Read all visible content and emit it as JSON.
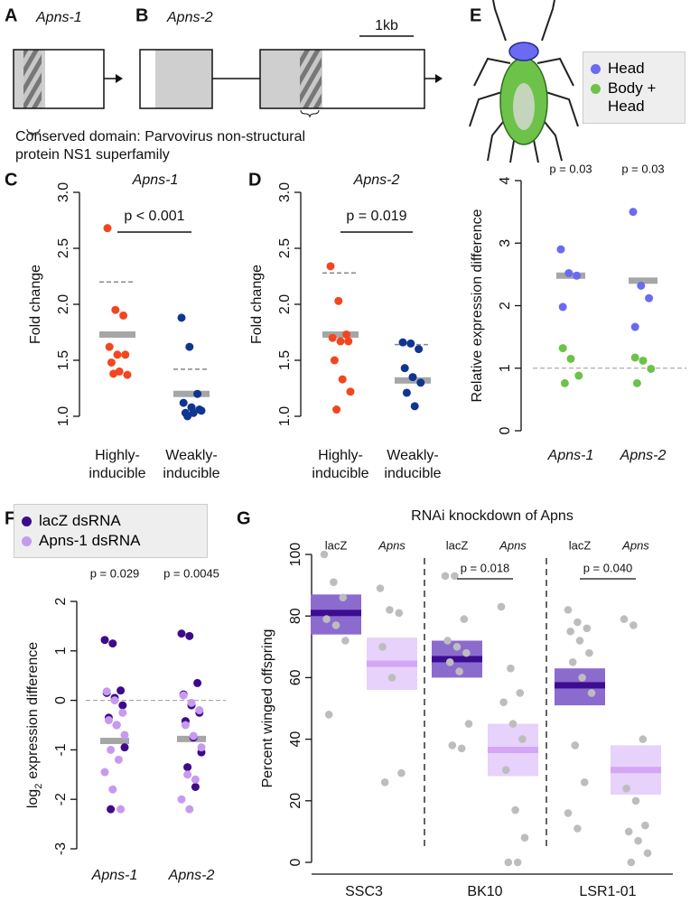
{
  "gene_diagram": {
    "panels": [
      {
        "letter": "A",
        "gene": "Apns-1"
      },
      {
        "letter": "B",
        "gene": "Apns-2"
      }
    ],
    "scale_label": "1kb",
    "domain_note": [
      "Conserved domain: Parvovirus non-structural",
      "protein NS1 superfamily"
    ]
  },
  "chart_data": [
    {
      "type": "strip",
      "panel": "C",
      "title": "Apns-1",
      "ylabel": "Fold change",
      "ylim": [
        1.0,
        3.0
      ],
      "yticks": [
        {
          "value": 1.0,
          "label": "1.0"
        },
        {
          "value": 1.5,
          "label": "1.5"
        },
        {
          "value": 2.0,
          "label": "2.0"
        },
        {
          "value": 2.5,
          "label": "2.5"
        },
        {
          "value": 3.0,
          "label": "3.0"
        }
      ],
      "p_label": "p < 0.001",
      "mean_color": "#a6a6a6",
      "groups": [
        {
          "category": [
            "Highly-",
            "inducible"
          ],
          "color": "#f2461f",
          "values": [
            2.68,
            1.95,
            1.9,
            1.62,
            1.55,
            1.55,
            1.48,
            1.4,
            1.37,
            1.38
          ],
          "mean": 1.73,
          "threshold": 2.2
        },
        {
          "category": [
            "Weakly-",
            "inducible"
          ],
          "color": "#0f3592",
          "values": [
            1.88,
            1.62,
            1.2,
            1.12,
            1.08,
            1.06,
            1.03,
            1.03,
            1.05,
            1.0
          ],
          "mean": 1.2,
          "threshold": 1.42
        }
      ]
    },
    {
      "type": "strip",
      "panel": "D",
      "title": "Apns-2",
      "ylabel": "Fold change",
      "ylim": [
        1.0,
        3.0
      ],
      "yticks": [
        {
          "value": 1.0,
          "label": "1.0"
        },
        {
          "value": 1.5,
          "label": "1.5"
        },
        {
          "value": 2.0,
          "label": "2.0"
        },
        {
          "value": 2.5,
          "label": "2.5"
        },
        {
          "value": 3.0,
          "label": "3.0"
        }
      ],
      "p_label": "p = 0.019",
      "mean_color": "#a6a6a6",
      "groups": [
        {
          "category": [
            "Highly-",
            "inducible"
          ],
          "color": "#f2461f",
          "values": [
            2.34,
            2.03,
            1.73,
            1.7,
            1.67,
            1.67,
            1.5,
            1.33,
            1.22,
            1.06
          ],
          "mean": 1.73,
          "threshold": 2.28
        },
        {
          "category": [
            "Weakly-",
            "inducible"
          ],
          "color": "#0f3592",
          "values": [
            1.66,
            1.65,
            1.6,
            1.43,
            1.35,
            1.3,
            1.21,
            1.09
          ],
          "mean": 1.32,
          "threshold": 1.64
        }
      ]
    },
    {
      "type": "multi_strip",
      "panel": "E",
      "ylabel": "Relative expression difference",
      "ylim": [
        0,
        4
      ],
      "yticks": [
        0,
        1,
        2,
        3,
        4
      ],
      "reference_line": 1,
      "mean_color": "#a6a6a6",
      "categories": [
        "Apns-1",
        "Apns-2"
      ],
      "means": [
        2.48,
        2.4
      ],
      "p_labels": [
        "p = 0.03",
        "p = 0.03"
      ],
      "series": [
        {
          "name": "Head",
          "color": "#6a6af2",
          "values": [
            [
              2.9,
              2.52,
              2.48,
              1.98
            ],
            [
              3.5,
              2.32,
              2.12,
              1.66
            ]
          ]
        },
        {
          "name": "Body + Head",
          "color": "#6dc249",
          "values": [
            [
              1.32,
              1.15,
              0.88,
              0.76
            ],
            [
              1.17,
              1.12,
              0.99,
              0.76
            ]
          ]
        }
      ]
    },
    {
      "type": "multi_strip",
      "panel": "F",
      "ylabel": [
        "log",
        "2",
        "expression difference"
      ],
      "ylim": [
        -3,
        2
      ],
      "yticks": [
        -3,
        -2,
        -1,
        0,
        1,
        2
      ],
      "reference_line": 0,
      "mean_color": "#a6a6a6",
      "categories": [
        "Apns-1",
        "Apns-2"
      ],
      "means": [
        -0.82,
        -0.78
      ],
      "p_labels": [
        "p = 0.029",
        "p = 0.0045"
      ],
      "series": [
        {
          "name": "lacZ dsRNA",
          "color": "#3e0a8c",
          "values": [
            [
              1.22,
              1.15,
              0.2,
              0.15,
              0.05,
              -0.1,
              -0.35,
              -0.5,
              -0.95,
              -2.2
            ],
            [
              1.35,
              1.3,
              0.35,
              0.12,
              -0.1,
              -0.25,
              -0.42,
              -0.75,
              -1.05,
              -1.35,
              -1.75
            ]
          ]
        },
        {
          "name": "Apns-1 dsRNA",
          "color": "#c79af0",
          "values": [
            [
              0.18,
              0.0,
              -0.25,
              -0.4,
              -0.5,
              -0.7,
              -1.0,
              -1.2,
              -1.45,
              -1.8,
              -2.2
            ],
            [
              0.1,
              -0.05,
              -0.2,
              -0.5,
              -0.72,
              -0.95,
              -1.5,
              -1.6,
              -2.0,
              -2.2
            ]
          ]
        }
      ]
    },
    {
      "type": "ci_strip",
      "panel": "G",
      "title": "RNAi knockdown of Apns",
      "ylabel": "Percent winged offspring",
      "ylim": [
        0,
        100
      ],
      "yticks": [
        0,
        20,
        40,
        60,
        80,
        100
      ],
      "point_color": "#bdbdbd",
      "subgroup_styles": [
        {
          "box": "#8c6bcf",
          "mean": "#3d0d91"
        },
        {
          "box": "#e6d2fa",
          "mean": "#d4a6f5"
        }
      ],
      "groups": [
        {
          "name": "SSC3",
          "subgroups": [
            {
              "name": "lacZ",
              "values": [
                100,
                91,
                86,
                79,
                77,
                72,
                48
              ],
              "mean": 81,
              "ci": [
                74,
                87
              ]
            },
            {
              "name": "Apns",
              "values": [
                89,
                82,
                81,
                70,
                60,
                29,
                26
              ],
              "mean": 64.5,
              "ci": [
                56,
                73
              ]
            }
          ]
        },
        {
          "name": "BK10",
          "p_label": "p = 0.018",
          "subgroups": [
            {
              "name": "lacZ",
              "values": [
                93,
                93,
                79,
                72,
                70,
                68,
                65,
                62,
                45,
                38,
                37
              ],
              "mean": 66,
              "ci": [
                60,
                72
              ]
            },
            {
              "name": "Apns",
              "values": [
                83,
                63,
                55,
                52,
                45,
                40,
                30,
                17,
                8,
                0,
                0
              ],
              "mean": 36.5,
              "ci": [
                28,
                45
              ]
            }
          ]
        },
        {
          "name": "LSR1-01",
          "p_label": "p = 0.040",
          "subgroups": [
            {
              "name": "lacZ",
              "values": [
                82,
                78,
                76,
                75,
                72,
                68,
                65,
                60,
                55,
                38,
                26,
                16,
                11
              ],
              "mean": 57.5,
              "ci": [
                51,
                63
              ]
            },
            {
              "name": "Apns",
              "values": [
                79,
                77,
                40,
                24,
                20,
                12,
                10,
                7,
                3,
                0
              ],
              "mean": 30,
              "ci": [
                22,
                38
              ]
            }
          ]
        }
      ]
    }
  ]
}
